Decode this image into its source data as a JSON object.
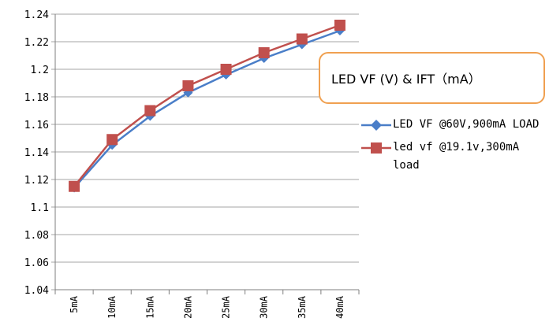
{
  "chart_data": {
    "type": "line",
    "title": "LED VF (V) & IFT（mA）",
    "categories": [
      "5mA",
      "10mA",
      "15mA",
      "20mA",
      "25mA",
      "30mA",
      "35mA",
      "40mA"
    ],
    "ylim": [
      1.04,
      1.24
    ],
    "yticks": [
      "1.04",
      "1.06",
      "1.08",
      "1.1",
      "1.12",
      "1.14",
      "1.16",
      "1.18",
      "1.2",
      "1.22",
      "1.24"
    ],
    "grid": true,
    "legend_position": "right",
    "series": [
      {
        "name": "LED VF @60V,900mA LOAD",
        "color": "#4a7ec8",
        "marker": "diamond",
        "values": [
          1.114,
          1.145,
          1.166,
          1.183,
          1.196,
          1.208,
          1.218,
          1.228
        ]
      },
      {
        "name": "led vf @19.1v,300mA load",
        "color": "#c0504d",
        "marker": "square",
        "values": [
          1.115,
          1.149,
          1.17,
          1.188,
          1.2,
          1.212,
          1.222,
          1.232
        ]
      }
    ]
  }
}
